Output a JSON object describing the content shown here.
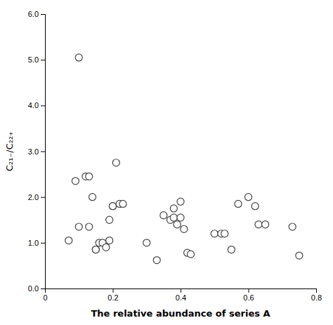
{
  "chart_data": {
    "type": "scatter",
    "xlabel": "The relative abundance of series A",
    "ylabel": "C₂₁₋/C₂₂₊",
    "x": [
      0.07,
      0.09,
      0.1,
      0.1,
      0.12,
      0.13,
      0.13,
      0.14,
      0.15,
      0.15,
      0.16,
      0.17,
      0.18,
      0.19,
      0.19,
      0.2,
      0.2,
      0.21,
      0.22,
      0.23,
      0.3,
      0.33,
      0.35,
      0.37,
      0.38,
      0.38,
      0.39,
      0.4,
      0.4,
      0.41,
      0.42,
      0.43,
      0.5,
      0.52,
      0.53,
      0.55,
      0.57,
      0.6,
      0.62,
      0.63,
      0.65,
      0.73,
      0.75
    ],
    "values": [
      1.05,
      2.35,
      5.05,
      1.35,
      2.45,
      2.45,
      1.35,
      2.0,
      0.85,
      0.85,
      1.0,
      1.0,
      0.9,
      1.5,
      1.05,
      1.8,
      1.8,
      2.75,
      1.85,
      1.85,
      1.0,
      0.62,
      1.6,
      1.5,
      1.55,
      1.75,
      1.4,
      1.55,
      1.9,
      1.3,
      0.78,
      0.75,
      1.2,
      1.2,
      1.2,
      0.85,
      1.85,
      2.0,
      1.8,
      1.4,
      1.4,
      1.35,
      0.72
    ],
    "xlim": [
      0,
      0.8
    ],
    "ylim": [
      0.0,
      6.0
    ],
    "xticks": [
      0,
      0.2,
      0.4,
      0.6,
      0.8
    ],
    "yticks": [
      {
        "value": 0.0,
        "label": "0.0"
      },
      {
        "value": 1.0,
        "label": "1.0"
      },
      {
        "value": 2.0,
        "label": "2.0"
      },
      {
        "value": 3.0,
        "label": "3.0"
      },
      {
        "value": 4.0,
        "label": "4.0"
      },
      {
        "value": 5.0,
        "label": "5.0"
      },
      {
        "value": 6.0,
        "label": "6.0"
      }
    ],
    "color": "#444444",
    "marker": "circle",
    "grid": false
  }
}
